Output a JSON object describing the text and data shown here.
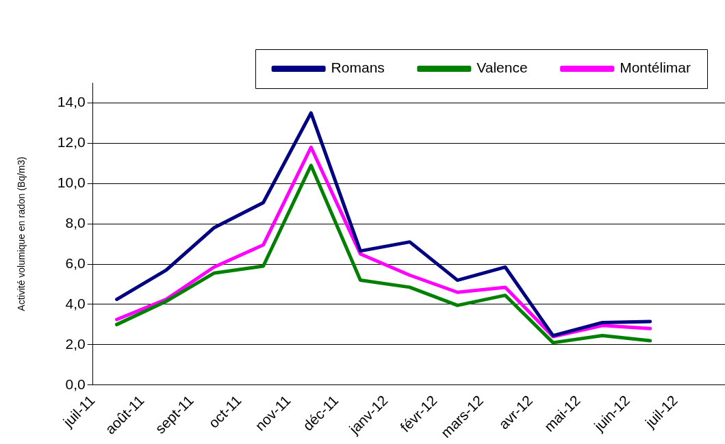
{
  "chart_data": {
    "type": "line",
    "ylabel": "Activité volumique en radon (Bq/m3)",
    "x": [
      "2011-07-16",
      "2011-08-16",
      "2011-09-15",
      "2011-10-16",
      "2011-11-15",
      "2011-12-16",
      "2012-01-16",
      "2012-02-15",
      "2012-03-16",
      "2012-04-15",
      "2012-05-16",
      "2012-06-15"
    ],
    "series": [
      {
        "name": "Romans",
        "color": "#000080",
        "values": [
          4.25,
          5.7,
          7.8,
          9.05,
          13.5,
          6.65,
          7.1,
          5.2,
          5.85,
          2.45,
          3.1,
          3.15
        ]
      },
      {
        "name": "Valence",
        "color": "#008000",
        "values": [
          3.0,
          4.15,
          5.55,
          5.9,
          10.9,
          5.2,
          4.85,
          3.95,
          4.45,
          2.1,
          2.45,
          2.2
        ]
      },
      {
        "name": "Montélimar",
        "color": "#ff00ff",
        "values": [
          3.25,
          4.25,
          5.85,
          6.95,
          11.8,
          6.5,
          5.45,
          4.6,
          4.85,
          2.4,
          2.95,
          2.8
        ]
      }
    ],
    "xlim": [
      "2011-07-01",
      "2012-08-01"
    ],
    "xticks": [
      {
        "value": "2011-07-01",
        "label": "juil-11"
      },
      {
        "value": "2011-08-01",
        "label": "août-11"
      },
      {
        "value": "2011-09-01",
        "label": "sept-11"
      },
      {
        "value": "2011-10-01",
        "label": "oct-11"
      },
      {
        "value": "2011-11-01",
        "label": "nov-11"
      },
      {
        "value": "2011-12-01",
        "label": "déc-11"
      },
      {
        "value": "2012-01-01",
        "label": "janv-12"
      },
      {
        "value": "2012-02-01",
        "label": "févr-12"
      },
      {
        "value": "2012-03-01",
        "label": "mars-12"
      },
      {
        "value": "2012-04-01",
        "label": "avr-12"
      },
      {
        "value": "2012-05-01",
        "label": "mai-12"
      },
      {
        "value": "2012-06-01",
        "label": "juin-12"
      },
      {
        "value": "2012-07-01",
        "label": "juil-12"
      }
    ],
    "ylim": [
      0,
      15
    ],
    "yticks": [
      {
        "value": 0,
        "label": "0,0"
      },
      {
        "value": 2,
        "label": "2,0"
      },
      {
        "value": 4,
        "label": "4,0"
      },
      {
        "value": 6,
        "label": "6,0"
      },
      {
        "value": 8,
        "label": "8,0"
      },
      {
        "value": 10,
        "label": "10,0"
      },
      {
        "value": 12,
        "label": "12,0"
      },
      {
        "value": 14,
        "label": "14,0"
      }
    ],
    "grid": "y",
    "legend": "top right",
    "marker": "none",
    "line_style": "solid"
  }
}
